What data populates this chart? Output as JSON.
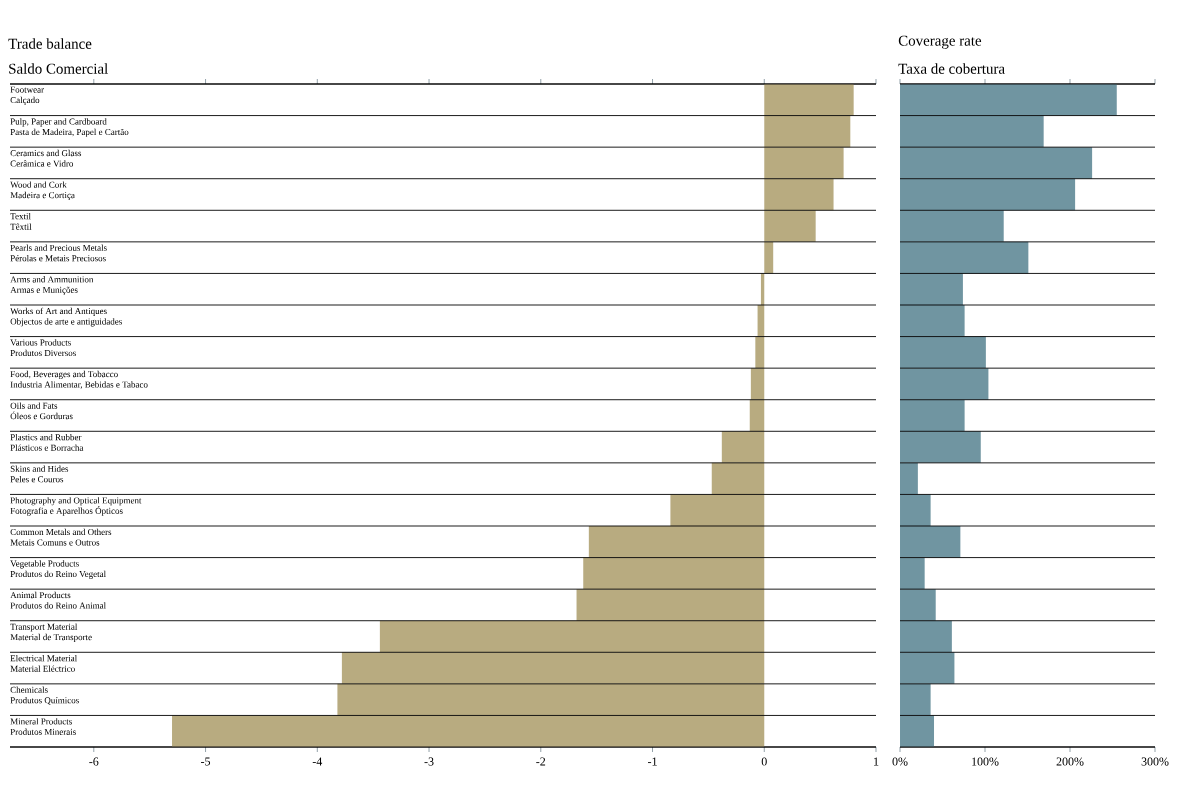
{
  "chart_data": [
    {
      "type": "bar",
      "orientation": "horizontal",
      "title": "Trade balance",
      "subtitle": "Saldo Comercial",
      "categories": [
        "Footwear\nCalçado",
        "Pulp, Paper and Cardboard\nPasta de Madeira, Papel e Cartão",
        "Ceramics and Glass\nCerâmica e Vidro",
        "Wood and Cork\nMadeira e Cortiça",
        "Textil\nTêxtil",
        "Pearls and Precious Metals\nPérolas e Metais Preciosos",
        "Arms and Ammunition\nArmas e Munições",
        "Works of Art and Antiques\nObjectos de arte e antiguidades",
        "Various Products\nProdutos Diversos",
        "Food, Beverages and Tobacco\nIndustria Alimentar, Bebidas e Tabaco",
        "Oils and Fats\nÓleos e Gorduras",
        "Plastics and Rubber\nPlásticos e Borracha",
        "Skins and Hides\nPeles e Couros",
        "Photography and Optical Equipment\nFotografia e Aparelhos Ópticos",
        "Common Metals and Others\nMetais Comuns e Outros",
        "Vegetable Products\nProdutos do Reino Vegetal",
        "Animal Products\nProdutos do Reino Animal",
        "Transport Material\nMaterial de Transporte",
        "Electrical Material\nMaterial Eléctrico",
        "Chemicals\nProdutos Químicos",
        "Mineral Products\nProdutos Minerais"
      ],
      "values": [
        0.8,
        0.77,
        0.71,
        0.62,
        0.46,
        0.08,
        -0.03,
        -0.06,
        -0.08,
        -0.12,
        -0.13,
        -0.38,
        -0.47,
        -0.84,
        -1.57,
        -1.62,
        -1.68,
        -3.44,
        -3.78,
        -3.82,
        -5.3
      ],
      "color": "#b8ab80",
      "xlim": [
        -6.75,
        1
      ],
      "xticks": [
        -6,
        -5,
        -4,
        -3,
        -2,
        -1,
        0,
        1
      ]
    },
    {
      "type": "bar",
      "orientation": "horizontal",
      "title": "Coverage rate",
      "subtitle": "Taxa de cobertura",
      "categories": [
        null,
        null,
        null,
        null,
        null,
        null,
        null,
        null,
        null,
        null,
        null,
        null,
        null,
        null,
        null,
        null,
        null,
        null,
        null,
        null,
        null
      ],
      "values": [
        255,
        169,
        226,
        206,
        122,
        151,
        74,
        76,
        101,
        104,
        76,
        95,
        21,
        36,
        71,
        29,
        42,
        61,
        64,
        36,
        40
      ],
      "color": "#7095a1",
      "xlim": [
        0,
        300
      ],
      "xticks": [
        {
          "value": 0,
          "label": "0%"
        },
        {
          "value": 100,
          "label": "100%"
        },
        {
          "value": 200,
          "label": "200%"
        },
        {
          "value": 300,
          "label": "300%"
        }
      ],
      "tick_labels": "x"
    }
  ]
}
